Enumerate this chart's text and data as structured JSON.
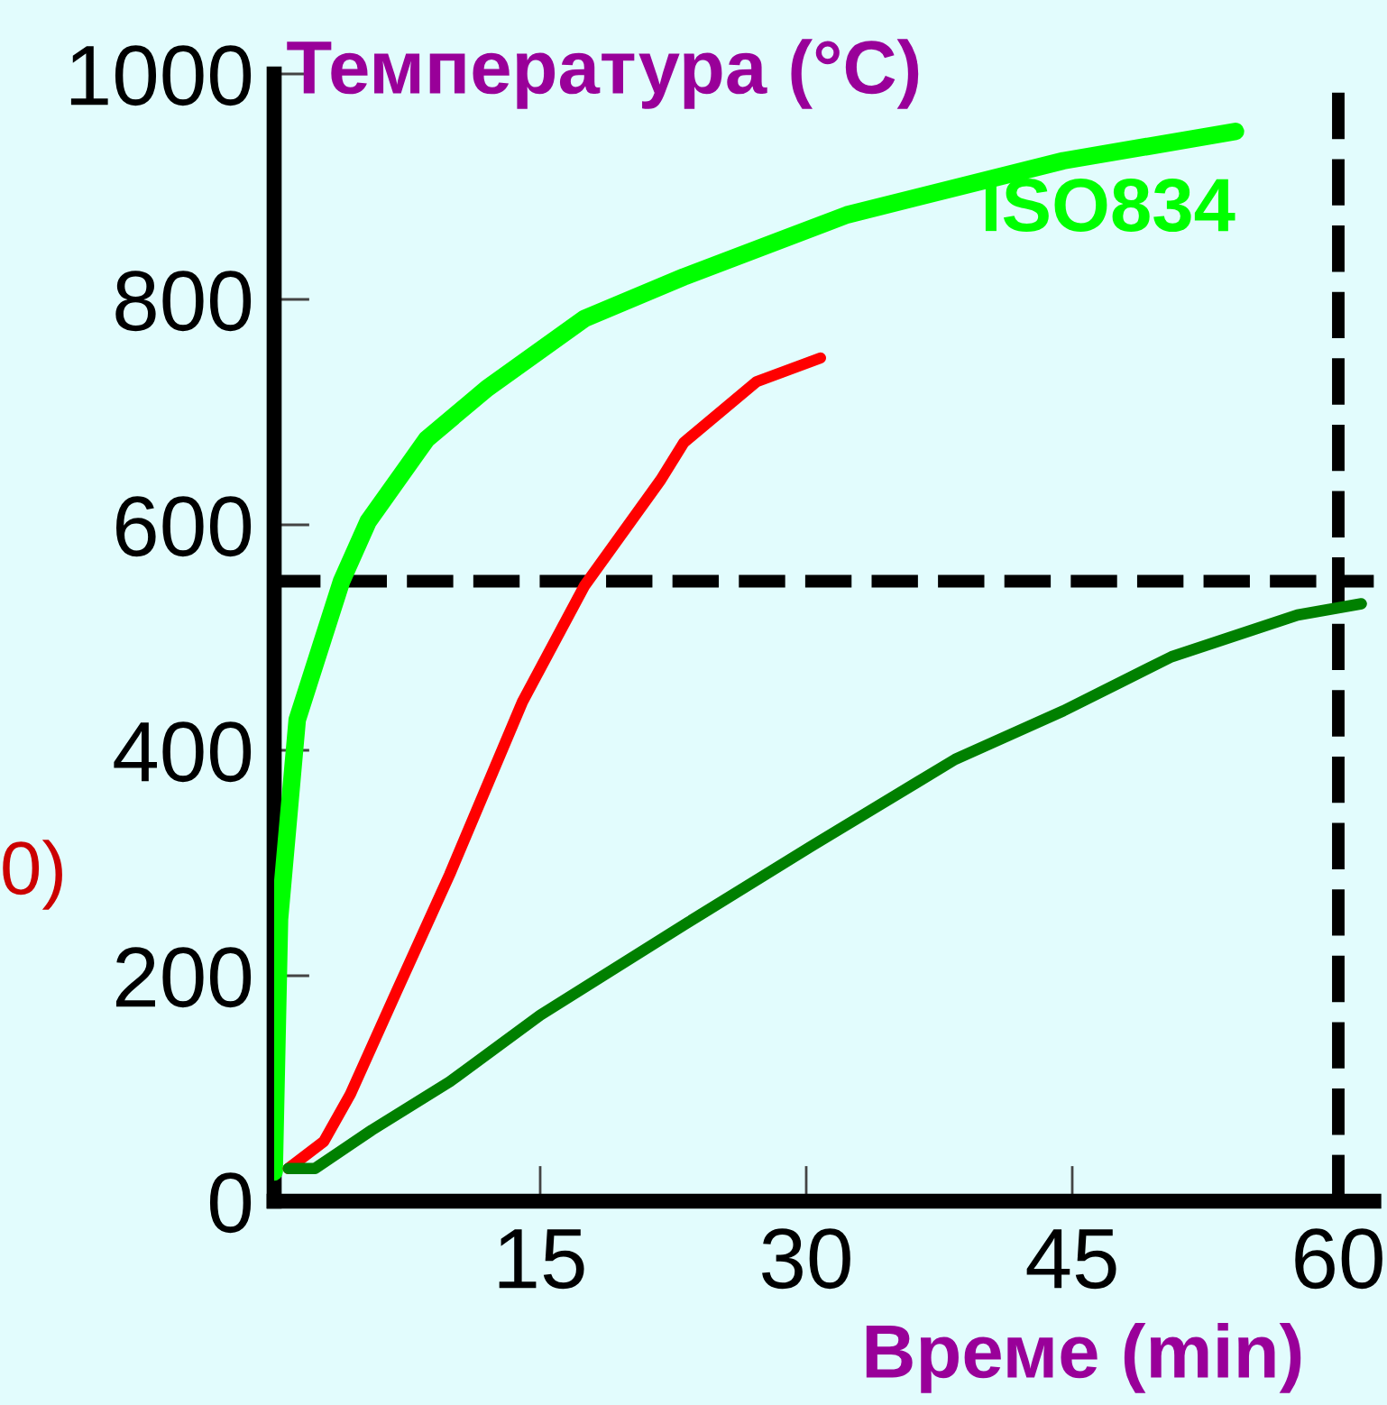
{
  "chart_data": {
    "type": "line",
    "ylabel": "Температура (°C)",
    "xlabel": "Време (min)",
    "xlim": [
      0,
      62
    ],
    "xticks": [
      15,
      30,
      45,
      60
    ],
    "ylim": [
      0,
      1000
    ],
    "yticks": [
      0,
      200,
      400,
      600,
      800,
      1000
    ],
    "grid": false,
    "legend": false,
    "marker": "none",
    "line_style": "solid",
    "series": [
      {
        "name": "ISO834",
        "color": "#00ff00",
        "x": [
          0,
          0.3,
          1.3,
          3.8,
          5.3,
          8.6,
          12,
          17.5,
          23.1,
          32.3,
          44.5,
          54.2
        ],
        "values": [
          26,
          250,
          427,
          550,
          603,
          676,
          721,
          783,
          820,
          875,
          923,
          949
        ]
      },
      {
        "color": "#ff0000",
        "x": [
          0.8,
          2.8,
          4.3,
          6.9,
          9.9,
          14,
          17.5,
          21.8,
          23.1,
          27.2,
          30.8
        ],
        "values": [
          29,
          53,
          95,
          186,
          290,
          443,
          546,
          640,
          673,
          727,
          748
        ]
      },
      {
        "color": "#008000",
        "x": [
          0.8,
          2.3,
          5.5,
          9.9,
          15,
          23.1,
          30.3,
          38.4,
          44.5,
          50.6,
          57.7,
          61.3
        ],
        "values": [
          29,
          29,
          63,
          106,
          165,
          245,
          315,
          392,
          435,
          483,
          520,
          530
        ]
      }
    ],
    "ref_lines": [
      {
        "axis": "y",
        "value": 550,
        "color": "#000000",
        "line_style": "dashed"
      },
      {
        "axis": "x",
        "value": 60,
        "color": "#000000",
        "line_style": "dashed"
      }
    ],
    "annotations": [
      "0)"
    ]
  }
}
